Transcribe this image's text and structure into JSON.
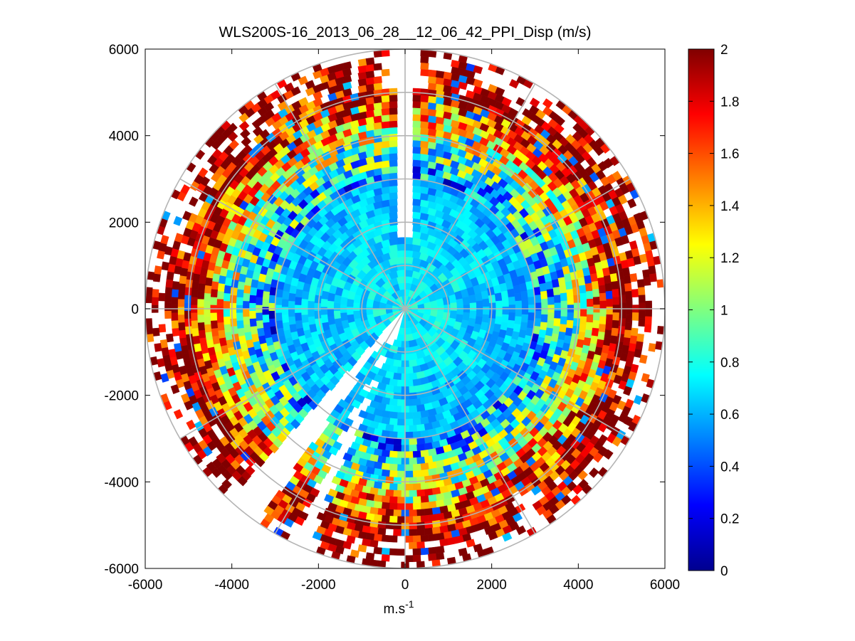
{
  "chart_data": {
    "type": "heatmap",
    "subtype": "polar PPI scan (ring/sector cells)",
    "title": "WLS200S-16_2013_06_28__12_06_42_PPI_Disp (m/s)",
    "xlabel_base": "m.s",
    "xlabel_exp": "-1",
    "ylabel": "",
    "xlim": [
      -6000,
      6000
    ],
    "ylim": [
      -6000,
      6000
    ],
    "x_ticks": [
      -6000,
      -4000,
      -2000,
      0,
      2000,
      4000,
      6000
    ],
    "y_ticks": [
      6000,
      4000,
      2000,
      0,
      -2000,
      -4000,
      -6000
    ],
    "x_tick_labels": [
      "-6000",
      "-4000",
      "-2000",
      "0",
      "2000",
      "4000",
      "6000"
    ],
    "y_tick_labels": [
      "6000",
      "4000",
      "2000",
      "0",
      "-2000",
      "-4000",
      "-6000"
    ],
    "grid": "polar rings every 1000 and radial lines every 30 degrees",
    "max_range": 6000,
    "colorbar": {
      "colormap": "jet",
      "range": [
        0,
        2
      ],
      "ticks": [
        0,
        0.2,
        0.4,
        0.6,
        0.8,
        1,
        1.2,
        1.4,
        1.6,
        1.8,
        2
      ],
      "tick_labels": [
        "0",
        "0.2",
        "0.4",
        "0.6",
        "0.8",
        "1",
        "1.2",
        "1.4",
        "1.6",
        "1.8",
        "2"
      ]
    },
    "radial_profile": {
      "range": [
        0,
        1000,
        2000,
        3000,
        3500,
        4000,
        4500,
        5000,
        5500,
        6000
      ],
      "typical_dispersion": [
        0.75,
        0.7,
        0.65,
        0.6,
        0.8,
        1.05,
        1.5,
        1.85,
        2.0,
        2.0
      ]
    },
    "data_gaps_deg": [
      [
        357,
        3
      ],
      [
        214,
        222
      ],
      [
        202,
        206
      ]
    ]
  }
}
